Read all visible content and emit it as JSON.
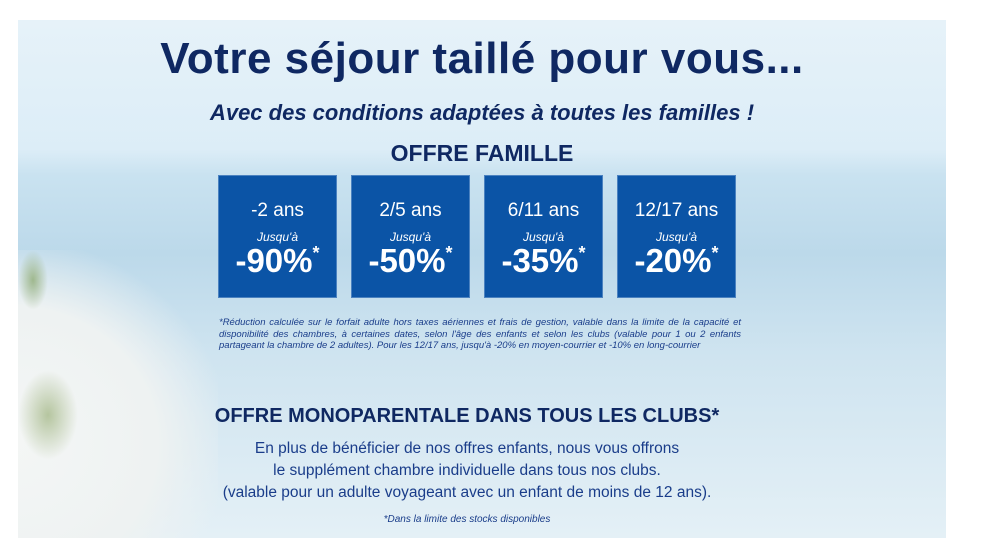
{
  "title": "Votre séjour taillé pour vous...",
  "subtitle": "Avec des conditions adaptées à toutes les familles !",
  "offre_famille": {
    "heading": "OFFRE FAMILLE",
    "boxes": [
      {
        "age": "-2 ans",
        "prefix": "Jusqu'à",
        "discount": "-90%",
        "star": "*"
      },
      {
        "age": "2/5 ans",
        "prefix": "Jusqu'à",
        "discount": "-50%",
        "star": "*"
      },
      {
        "age": "6/11 ans",
        "prefix": "Jusqu'à",
        "discount": "-35%",
        "star": "*"
      },
      {
        "age": "12/17 ans",
        "prefix": "Jusqu'à",
        "discount": "-20%",
        "star": "*"
      }
    ],
    "note": "*Réduction calculée sur le forfait adulte hors taxes aériennes et frais de gestion, valable dans la limite de la capacité et disponibilité des chambres, à certaines dates, selon l'âge des enfants et selon les clubs (valable pour 1 ou 2 enfants partageant la chambre de 2 adultes). Pour les 12/17 ans, jusqu'à -20% en moyen-courrier et -10% en long-courrier"
  },
  "offre_mono": {
    "heading": "OFFRE MONOPARENTALE DANS TOUS LES CLUBS*",
    "lines": [
      "En plus de bénéficier de nos offres enfants, nous vous offrons",
      "le supplément chambre individuelle dans tous nos clubs.",
      "(valable pour un adulte voyageant avec un enfant de moins de 12 ans)."
    ],
    "footnote": "*Dans la limite des stocks disponibles"
  }
}
